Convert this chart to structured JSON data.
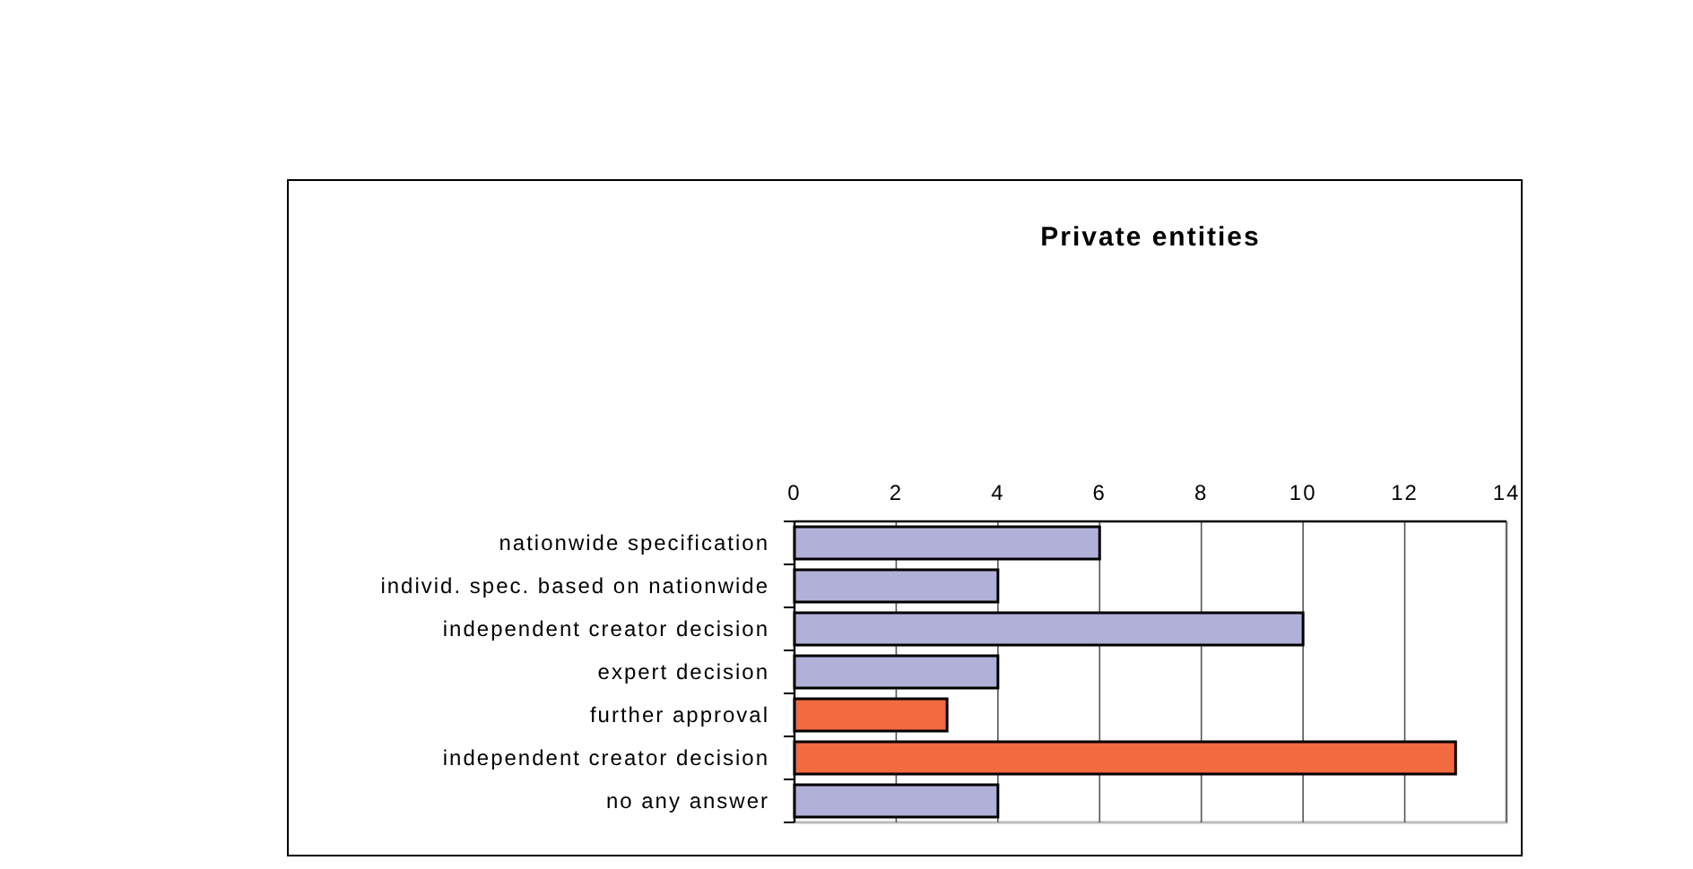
{
  "chart_data": {
    "type": "bar",
    "orientation": "horizontal",
    "title": "Private entities",
    "categories": [
      "nationwide specification",
      "individ. spec. based on nationwide",
      "independent creator decision",
      "expert decision",
      "further approval",
      "independent creator decision",
      "no any answer"
    ],
    "values": [
      6,
      4,
      10,
      4,
      3,
      13,
      4
    ],
    "colors": [
      "#b0b0d8",
      "#b0b0d8",
      "#b0b0d8",
      "#b0b0d8",
      "#f26a40",
      "#f26a40",
      "#b0b0d8"
    ],
    "xlim": [
      0,
      14
    ],
    "xticks": [
      0,
      2,
      4,
      6,
      8,
      10,
      12,
      14
    ],
    "grid": "x"
  }
}
